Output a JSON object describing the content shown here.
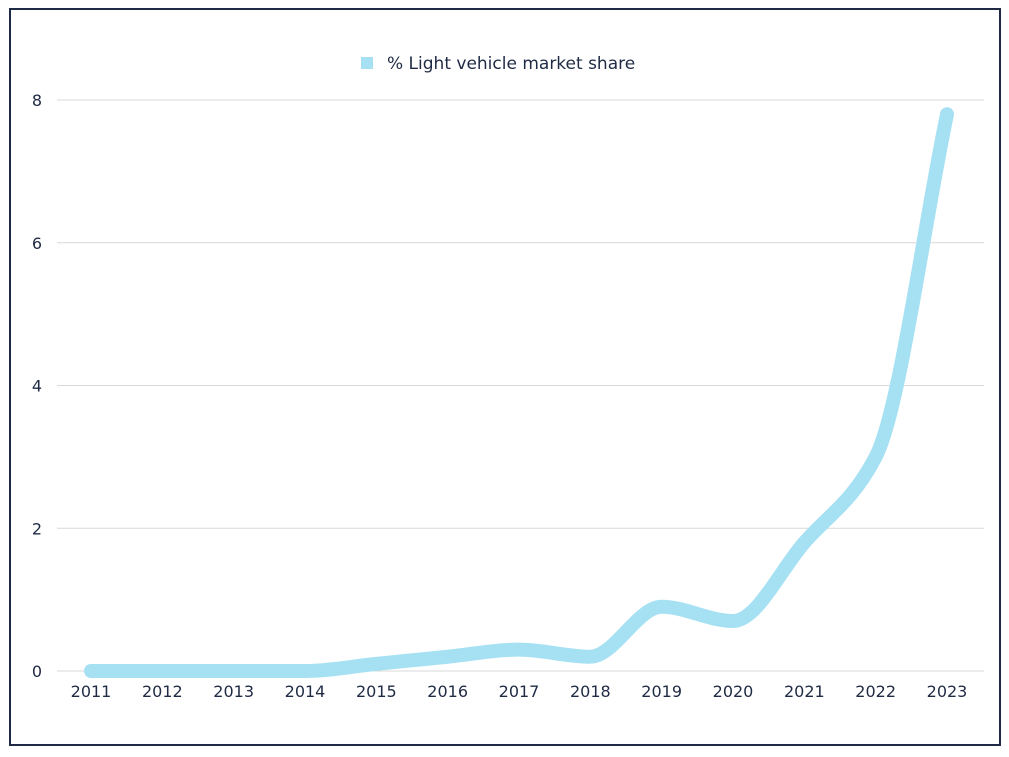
{
  "chart_data": {
    "type": "line",
    "title": "",
    "xlabel": "",
    "ylabel": "",
    "categories": [
      "2011",
      "2012",
      "2013",
      "2014",
      "2015",
      "2016",
      "2017",
      "2018",
      "2019",
      "2020",
      "2021",
      "2022",
      "2023"
    ],
    "series": [
      {
        "name": "% Light vehicle market share",
        "values": [
          0,
          0,
          0,
          0,
          0.1,
          0.2,
          0.3,
          0.2,
          0.9,
          0.7,
          1.8,
          3.0,
          7.8
        ]
      }
    ],
    "ylim": [
      0,
      8
    ],
    "yticks": [
      0,
      2,
      4,
      6,
      8
    ],
    "grid": "horizontal",
    "legend_position": "top-center",
    "colors": {
      "series": "#a6e1f3",
      "text": "#1f2a44",
      "grid": "#d9d9d9",
      "border": "#1f2a44"
    }
  }
}
